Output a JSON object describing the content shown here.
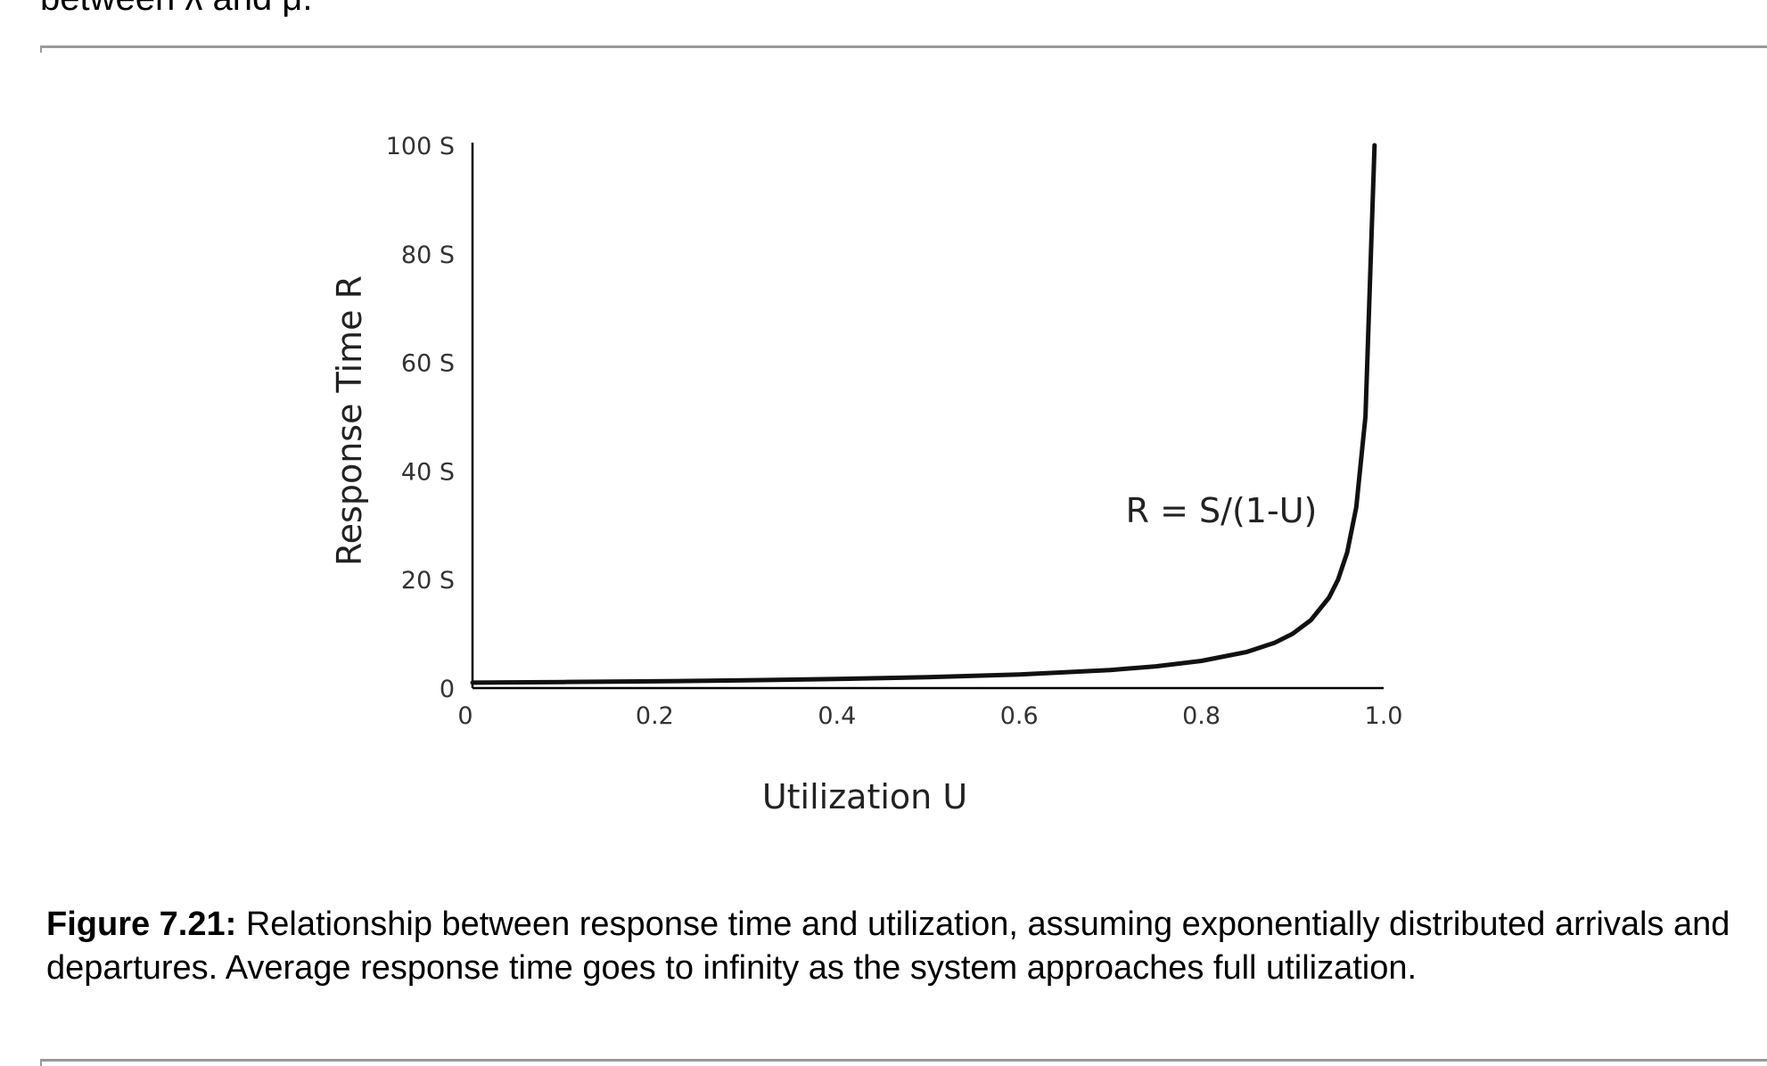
{
  "page": {
    "top_text": "between λ and μ."
  },
  "caption": {
    "label": "Figure 7.21:",
    "text": " Relationship between response time and utilization, assuming exponentially distributed arrivals and departures. Average response time goes to infinity as the system approaches full utilization."
  },
  "chart_data": {
    "type": "line",
    "xlabel": "Utilization U",
    "ylabel": "Response Time R",
    "xlim": [
      0,
      1.0
    ],
    "ylim": [
      0,
      100
    ],
    "x_ticks": [
      "0",
      "0.2",
      "0.4",
      "0.6",
      "0.8",
      "1.0"
    ],
    "y_ticks": [
      "0",
      "20 S",
      "40 S",
      "60 S",
      "80 S",
      "100 S"
    ],
    "grid": false,
    "annotations": [
      {
        "text": "R = S/(1-U)"
      }
    ],
    "series": [
      {
        "x": [
          0,
          0.1,
          0.2,
          0.3,
          0.4,
          0.5,
          0.6,
          0.7,
          0.75,
          0.8,
          0.85,
          0.88,
          0.9,
          0.92,
          0.94,
          0.95,
          0.96,
          0.97,
          0.98,
          0.99
        ],
        "y": [
          1,
          1.11,
          1.25,
          1.43,
          1.67,
          2,
          2.5,
          3.33,
          4,
          5,
          6.67,
          8.33,
          10,
          12.5,
          16.67,
          20,
          25,
          33.33,
          50,
          100
        ]
      }
    ]
  }
}
